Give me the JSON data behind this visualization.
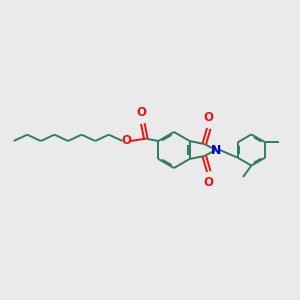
{
  "bg_color": "#eaeaea",
  "bond_color": "#2e7d5e",
  "oxygen_color": "#ee1111",
  "nitrogen_color": "#0000cc",
  "lw": 1.4,
  "dbo": 0.055,
  "figsize": [
    3.0,
    3.0
  ],
  "dpi": 100,
  "xlim": [
    0,
    10
  ],
  "ylim": [
    2,
    8
  ]
}
